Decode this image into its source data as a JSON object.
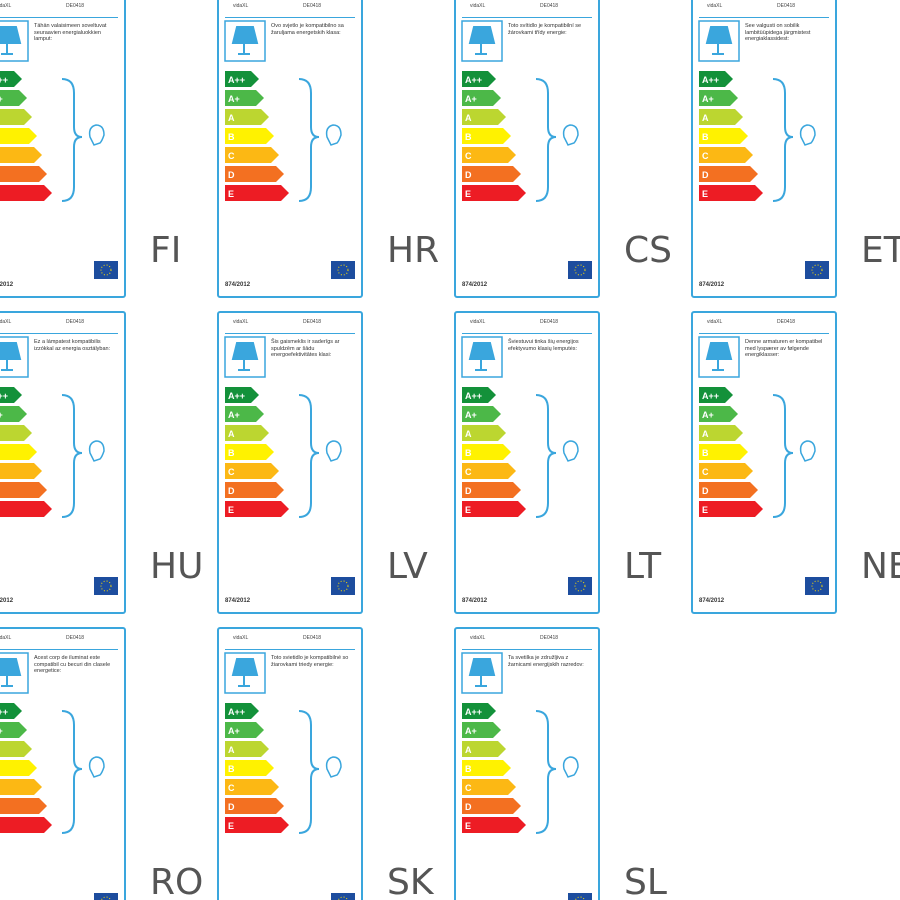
{
  "brand": "vidaXL",
  "model": "DE0418",
  "regulation": "874/2012",
  "classes": [
    "A++",
    "A+",
    "A",
    "B",
    "C",
    "D",
    "E"
  ],
  "labels": [
    {
      "code": "FI",
      "text": "Tähän valaisimeen soveltuvat seuraavien energialuokkien lamput:"
    },
    {
      "code": "HR",
      "text": "Ovo svjetlo je kompatibilno sa žaruljama energetskih klasa:"
    },
    {
      "code": "CS",
      "text": "Toto svítidlo je kompatibilní se žárovkami třídy energie:"
    },
    {
      "code": "ET",
      "text": "See valgusti on sobilik lambitüüpidega järgmistest energiaklassidest:"
    },
    {
      "code": "HU",
      "text": "Ez a lámpatest kompatibilis izzókkal az energia osztályban:"
    },
    {
      "code": "LV",
      "text": "Šis gaismeklis ir saderīgs ar spuldzēm ar šādu energoefektivitātes klasi:"
    },
    {
      "code": "LT",
      "text": "Šviestuvui tinka šių energijos efektyvumo klasių lemputės:"
    },
    {
      "code": "NE",
      "text": "Denne armaturen er kompatibel med lyspærer av følgende energiklasser:"
    },
    {
      "code": "RO",
      "text": "Acest corp de iluminat este compatibil cu becuri din clasele energetice:"
    },
    {
      "code": "SK",
      "text": "Toto svietidlo je kompatibilné so žiarovkami triedy energie:"
    },
    {
      "code": "SL",
      "text": "Ta svetilka je združljiva z žarnicami energijskih razredov:"
    }
  ]
}
